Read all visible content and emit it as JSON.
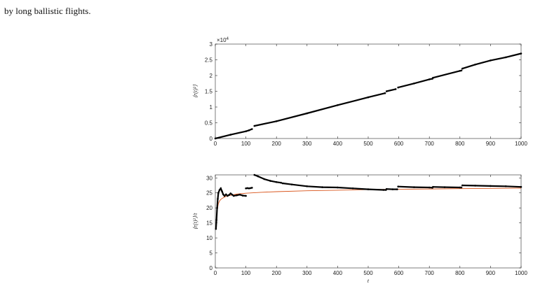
{
  "caption": "by long ballistic flights.",
  "chart_data": [
    {
      "type": "scatter",
      "ylabel": "⟨r(t)²⟩",
      "multiplier": "×10",
      "multiplier_exp": "4",
      "xlim": [
        0,
        1000
      ],
      "ylim": [
        0,
        3
      ],
      "xticks": [
        "0",
        "100",
        "200",
        "300",
        "400",
        "500",
        "600",
        "700",
        "800",
        "900",
        "1000"
      ],
      "yticks": [
        "0",
        "0.5",
        "1",
        "1.5",
        "2",
        "2.5",
        "3"
      ],
      "grid": false,
      "series": [
        {
          "x": [
            0,
            50,
            100,
            110,
            120
          ],
          "y": [
            0,
            0.12,
            0.23,
            0.26,
            0.3
          ]
        },
        {
          "x": [
            128,
            200,
            300,
            400,
            500,
            555
          ],
          "y": [
            0.4,
            0.55,
            0.8,
            1.06,
            1.31,
            1.44
          ]
        },
        {
          "x": [
            560,
            590
          ],
          "y": [
            1.5,
            1.57
          ]
        },
        {
          "x": [
            598,
            650,
            700,
            710
          ],
          "y": [
            1.62,
            1.75,
            1.88,
            1.9
          ]
        },
        {
          "x": [
            712,
            800,
            805
          ],
          "y": [
            1.93,
            2.15,
            2.16
          ]
        },
        {
          "x": [
            808,
            850,
            900,
            950,
            1000
          ],
          "y": [
            2.22,
            2.35,
            2.48,
            2.58,
            2.7
          ]
        }
      ]
    },
    {
      "type": "scatter",
      "ylabel": "⟨r(t)²⟩/t",
      "xlabel": "t",
      "xlim": [
        0,
        1000
      ],
      "ylim": [
        0,
        31
      ],
      "xticks": [
        "0",
        "100",
        "200",
        "300",
        "400",
        "500",
        "600",
        "700",
        "800",
        "900",
        "1000"
      ],
      "yticks": [
        "0",
        "5",
        "10",
        "15",
        "20",
        "25",
        "30"
      ],
      "grid": false,
      "series": [
        {
          "x": [
            2,
            4,
            6,
            8,
            10,
            14,
            18,
            22,
            26,
            30,
            35,
            40,
            45,
            50,
            55,
            60,
            70,
            80,
            90,
            100
          ],
          "y": [
            13,
            16,
            20,
            23,
            25,
            26,
            26.5,
            25.5,
            24.5,
            24,
            24.5,
            24,
            24.3,
            24.8,
            24.4,
            24,
            24.2,
            24.4,
            24.1,
            24
          ]
        },
        {
          "x": [
            100,
            105,
            110,
            115,
            120
          ],
          "y": [
            26.5,
            26.6,
            26.5,
            26.6,
            26.7
          ]
        },
        {
          "x": [
            128,
            140,
            160,
            180,
            200,
            215
          ],
          "y": [
            31,
            30.5,
            29.6,
            29,
            28.6,
            28.4
          ]
        },
        {
          "x": [
            220,
            250,
            300,
            350,
            400,
            450,
            500,
            550,
            558
          ],
          "y": [
            28.2,
            27.8,
            27.2,
            26.9,
            26.8,
            26.5,
            26.2,
            26.0,
            26.0
          ]
        },
        {
          "x": [
            560,
            580,
            595
          ],
          "y": [
            26.3,
            26.2,
            26.2
          ]
        },
        {
          "x": [
            598,
            650,
            700,
            710
          ],
          "y": [
            27.1,
            26.9,
            26.8,
            26.7
          ]
        },
        {
          "x": [
            712,
            750,
            800,
            805
          ],
          "y": [
            27.0,
            26.9,
            26.8,
            26.8
          ]
        },
        {
          "x": [
            808,
            850,
            900,
            950,
            1000
          ],
          "y": [
            27.5,
            27.4,
            27.3,
            27.2,
            27.0
          ]
        }
      ],
      "fit": {
        "x": [
          3,
          6,
          10,
          15,
          20,
          30,
          40,
          50,
          70,
          100,
          150,
          200,
          300,
          400,
          500,
          600,
          700,
          800,
          900,
          1000
        ],
        "y": [
          13.5,
          19,
          21.5,
          22.5,
          23,
          23.6,
          24,
          24.2,
          24.6,
          24.9,
          25.2,
          25.4,
          25.7,
          25.9,
          26.1,
          26.2,
          26.3,
          26.4,
          26.5,
          26.6
        ],
        "color": "#d95319"
      },
      "marker_color": "#000000"
    }
  ]
}
